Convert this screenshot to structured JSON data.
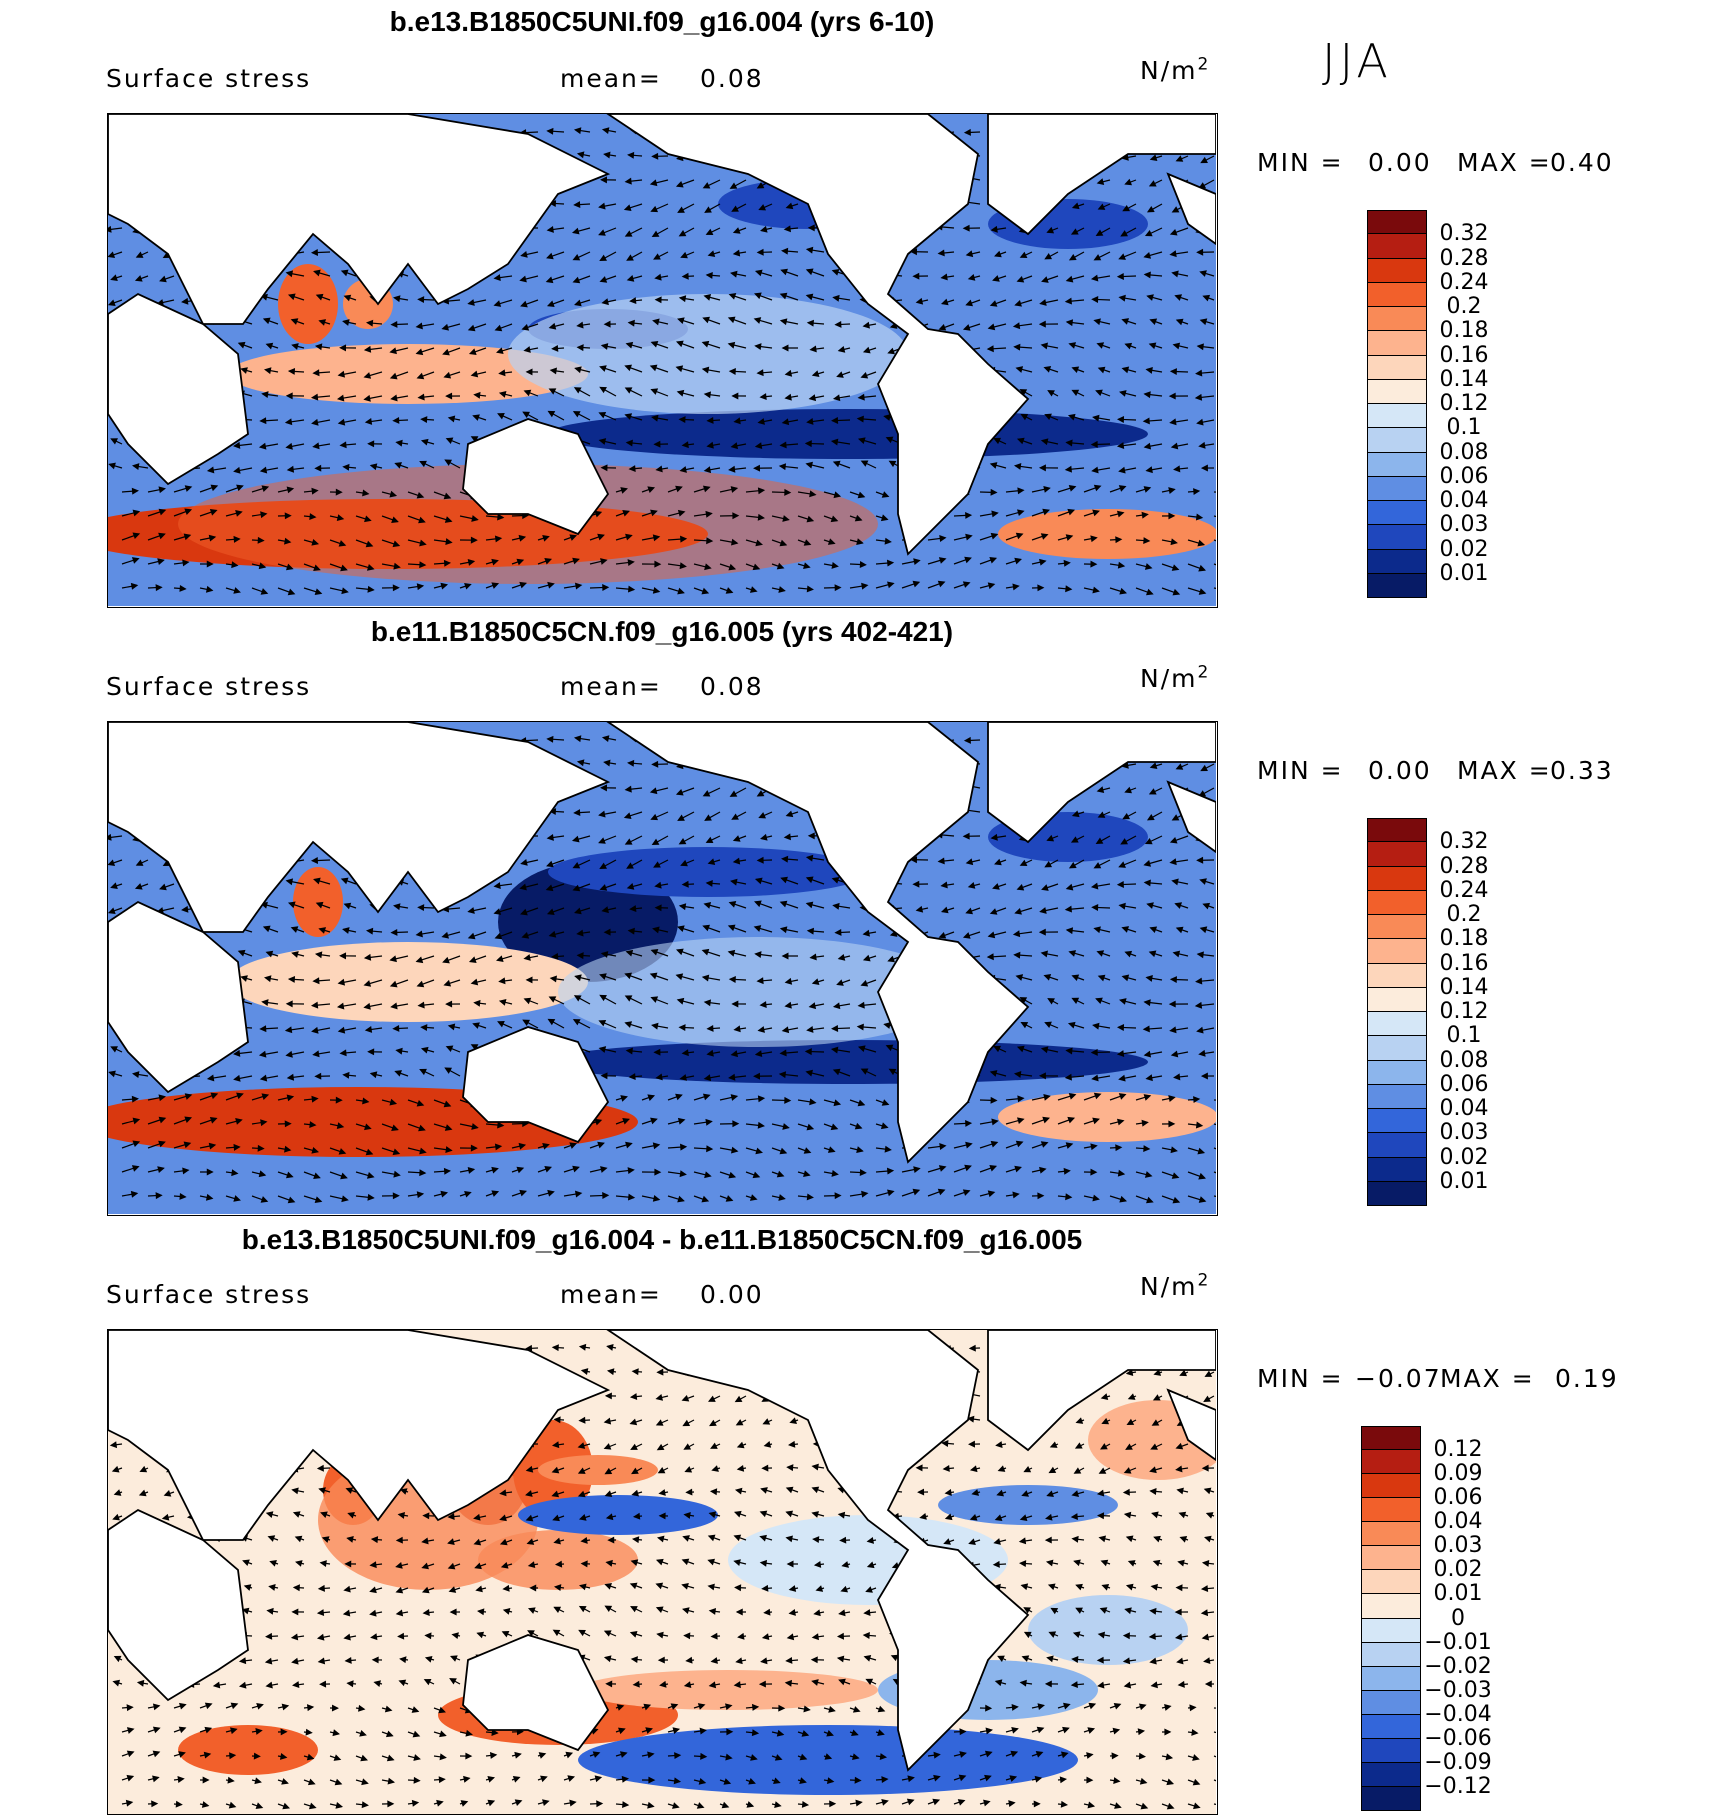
{
  "season": "JJA",
  "panels": [
    {
      "title": "b.e13.B1850C5UNI.f09_g16.004 (yrs 6-10)",
      "variable": "Surface stress",
      "mean_label": "mean=",
      "mean_value": "0.08",
      "unit_base": "N/m",
      "unit_exp": "2",
      "min_label": "MIN =",
      "min_value": "0.00",
      "max_label": "MAX =",
      "max_value": "0.40",
      "colorbar_labels": [
        "0.32",
        "0.28",
        "0.24",
        "0.2",
        "0.18",
        "0.16",
        "0.14",
        "0.12",
        "0.1",
        "0.08",
        "0.06",
        "0.04",
        "0.03",
        "0.02",
        "0.01"
      ],
      "colorbar_colors": [
        "#7a0a0c",
        "#b51e12",
        "#d9380f",
        "#f2602b",
        "#f98a57",
        "#fdb38e",
        "#fdd6bb",
        "#fcecdc",
        "#d5e7f7",
        "#b8d2f2",
        "#8cb5ec",
        "#5f8ee3",
        "#3366da",
        "#1f47bd",
        "#0c2a8c",
        "#071b66"
      ]
    },
    {
      "title": "b.e11.B1850C5CN.f09_g16.005 (yrs 402-421)",
      "variable": "Surface stress",
      "mean_label": "mean=",
      "mean_value": "0.08",
      "unit_base": "N/m",
      "unit_exp": "2",
      "min_label": "MIN =",
      "min_value": "0.00",
      "max_label": "MAX =",
      "max_value": "0.33",
      "colorbar_labels": [
        "0.32",
        "0.28",
        "0.24",
        "0.2",
        "0.18",
        "0.16",
        "0.14",
        "0.12",
        "0.1",
        "0.08",
        "0.06",
        "0.04",
        "0.03",
        "0.02",
        "0.01"
      ],
      "colorbar_colors": [
        "#7a0a0c",
        "#b51e12",
        "#d9380f",
        "#f2602b",
        "#f98a57",
        "#fdb38e",
        "#fdd6bb",
        "#fcecdc",
        "#d5e7f7",
        "#b8d2f2",
        "#8cb5ec",
        "#5f8ee3",
        "#3366da",
        "#1f47bd",
        "#0c2a8c",
        "#071b66"
      ]
    },
    {
      "title": "b.e13.B1850C5UNI.f09_g16.004 - b.e11.B1850C5CN.f09_g16.005",
      "variable": "Surface stress",
      "mean_label": "mean=",
      "mean_value": "0.00",
      "unit_base": "N/m",
      "unit_exp": "2",
      "min_label": "MIN =",
      "min_value": "−0.07",
      "max_label": "MAX =",
      "max_value": "0.19",
      "colorbar_labels": [
        "0.12",
        "0.09",
        "0.06",
        "0.04",
        "0.03",
        "0.02",
        "0.01",
        "0",
        "−0.01",
        "−0.02",
        "−0.03",
        "−0.04",
        "−0.06",
        "−0.09",
        "−0.12"
      ],
      "colorbar_colors": [
        "#7a0a0c",
        "#b51e12",
        "#d9380f",
        "#f2602b",
        "#f98a57",
        "#fdb38e",
        "#fdd6bb",
        "#fcecdc",
        "#d5e7f7",
        "#b8d2f2",
        "#8cb5ec",
        "#5f8ee3",
        "#3366da",
        "#1f47bd",
        "#0c2a8c",
        "#071b66"
      ]
    }
  ]
}
